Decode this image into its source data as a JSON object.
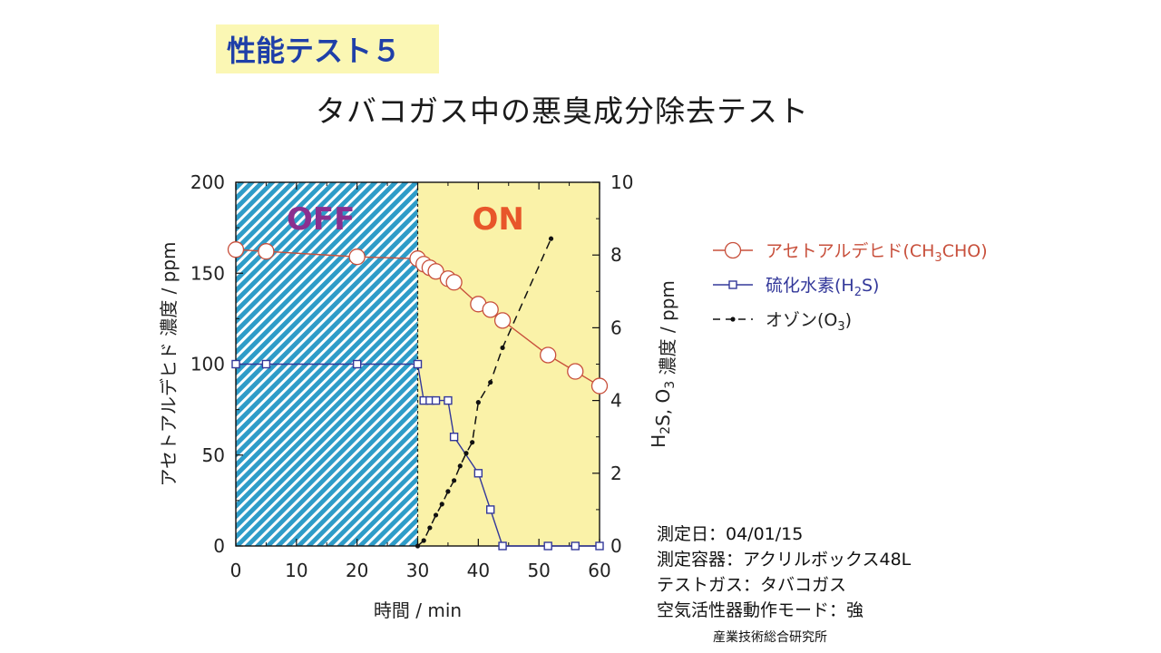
{
  "header": {
    "test_label": "性能テスト５",
    "title": "タバコガス中の悪臭成分除去テスト"
  },
  "chart_data": {
    "type": "line",
    "title": "",
    "xlabel": "時間 / min",
    "ylabel_left": "アセトアルデヒド 濃度 / ppm",
    "ylabel_right": "H2S, O3 濃度 / ppm",
    "xlim": [
      0,
      60
    ],
    "ylim_left": [
      0,
      200
    ],
    "ylim_right": [
      0,
      10
    ],
    "x_ticks": [
      "0",
      "10",
      "20",
      "30",
      "40",
      "50",
      "60"
    ],
    "y_left_ticks": [
      "0",
      "50",
      "100",
      "150",
      "200"
    ],
    "y_right_ticks": [
      "0",
      "2",
      "4",
      "6",
      "8",
      "10"
    ],
    "regions": [
      {
        "label": "OFF",
        "x_from": 0,
        "x_to": 30,
        "fill": "#2e9cc8",
        "text_color": "#8b2f8f"
      },
      {
        "label": "ON",
        "x_from": 30,
        "x_to": 60,
        "fill": "#faf2a8",
        "text_color": "#e8562a"
      }
    ],
    "series": [
      {
        "name": "アセトアルデヒド(CH3CHO)",
        "axis": "left",
        "color": "#c8503c",
        "marker": "circle",
        "dash": "solid",
        "x": [
          0,
          5,
          20,
          30,
          31,
          32,
          33,
          35,
          36,
          40,
          42,
          44,
          51.5,
          56,
          60
        ],
        "y": [
          163,
          162,
          159,
          158,
          155,
          153,
          151,
          147,
          145,
          133,
          130,
          124,
          105,
          96,
          88
        ]
      },
      {
        "name": "硫化水素(H2S)",
        "axis": "right",
        "color": "#33389a",
        "marker": "square",
        "dash": "solid",
        "x": [
          0,
          5,
          20,
          30,
          31,
          32,
          33,
          35,
          36,
          40,
          42,
          44,
          51.5,
          56,
          60
        ],
        "y": [
          5.0,
          5.0,
          5.0,
          5.0,
          4.0,
          4.0,
          4.0,
          4.0,
          3.0,
          2.0,
          1.0,
          0.0,
          0.0,
          0.0,
          0.0
        ]
      },
      {
        "name": "オゾン(O3)",
        "axis": "right",
        "color": "#111111",
        "marker": "dot",
        "dash": "dashed",
        "x": [
          30,
          31,
          32,
          33,
          34,
          35,
          36,
          37,
          38,
          39,
          40,
          42,
          44,
          52
        ],
        "y": [
          0.0,
          0.15,
          0.5,
          0.85,
          1.15,
          1.5,
          1.8,
          2.2,
          2.55,
          2.85,
          3.95,
          4.5,
          5.45,
          8.45
        ]
      }
    ],
    "legend": {
      "position": "right",
      "entries": [
        {
          "base": "アセトアルデヒド(CH",
          "sub": "3",
          "tail": "CHO)"
        },
        {
          "base": "硫化水素(H",
          "sub": "2",
          "tail": "S)"
        },
        {
          "base": "オゾン(O",
          "sub": "3",
          "tail": ")"
        }
      ]
    }
  },
  "info": {
    "date": "測定日：04/01/15",
    "container": "測定容器：アクリルボックス48L",
    "gas": "テストガス：タバコガス",
    "mode": "空気活性器動作モード：強",
    "org": "産業技術総合研究所"
  }
}
